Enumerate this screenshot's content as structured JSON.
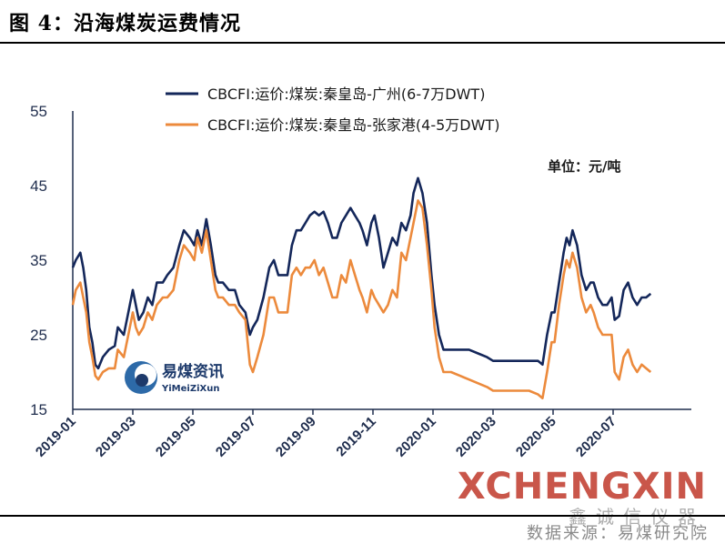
{
  "figure": {
    "title": "图 4：沿海煤炭运费情况",
    "source": "数据来源：易煤研究院",
    "unit": "单位：元/吨",
    "watermark": "XCHENGXIN",
    "watermark_cn": "鑫诚信仪器",
    "brand": "易煤资讯",
    "brand_sub": "YiMeiZiXun"
  },
  "colors": {
    "series1": "#14275a",
    "series2": "#ec8a3c",
    "axis": "#1f2d4d"
  },
  "chart_data": {
    "type": "line",
    "title": "",
    "xlabel": "",
    "ylabel": "",
    "ylim": [
      15,
      55
    ],
    "yticks": [
      "15",
      "25",
      "35",
      "45",
      "55"
    ],
    "x_range": [
      0,
      20
    ],
    "xticks": [
      {
        "x": 0,
        "label": "2019-01"
      },
      {
        "x": 2,
        "label": "2019-03"
      },
      {
        "x": 4,
        "label": "2019-05"
      },
      {
        "x": 6,
        "label": "2019-07"
      },
      {
        "x": 8,
        "label": "2019-09"
      },
      {
        "x": 10,
        "label": "2019-11"
      },
      {
        "x": 12,
        "label": "2020-01"
      },
      {
        "x": 14,
        "label": "2020-03"
      },
      {
        "x": 16,
        "label": "2020-05"
      },
      {
        "x": 18,
        "label": "2020-07"
      }
    ],
    "grid": false,
    "legend": "top",
    "series": [
      {
        "name": "CBCFI:运价:煤炭:秦皇岛-广州(6-7万DWT)",
        "points": [
          [
            0.0,
            34
          ],
          [
            0.1,
            35
          ],
          [
            0.25,
            36
          ],
          [
            0.35,
            34
          ],
          [
            0.45,
            31
          ],
          [
            0.55,
            26
          ],
          [
            0.65,
            24
          ],
          [
            0.75,
            21
          ],
          [
            0.85,
            20.5
          ],
          [
            1.0,
            22
          ],
          [
            1.2,
            23
          ],
          [
            1.4,
            23.5
          ],
          [
            1.5,
            26
          ],
          [
            1.7,
            25
          ],
          [
            1.85,
            28
          ],
          [
            2.0,
            31
          ],
          [
            2.1,
            29
          ],
          [
            2.2,
            27
          ],
          [
            2.35,
            28
          ],
          [
            2.5,
            30
          ],
          [
            2.65,
            29
          ],
          [
            2.8,
            32
          ],
          [
            3.0,
            32
          ],
          [
            3.15,
            33
          ],
          [
            3.35,
            34
          ],
          [
            3.55,
            37
          ],
          [
            3.7,
            39
          ],
          [
            3.9,
            38
          ],
          [
            4.05,
            37
          ],
          [
            4.15,
            39
          ],
          [
            4.3,
            37
          ],
          [
            4.45,
            40.5
          ],
          [
            4.6,
            37
          ],
          [
            4.75,
            33
          ],
          [
            4.85,
            32
          ],
          [
            5.0,
            32
          ],
          [
            5.2,
            31
          ],
          [
            5.4,
            31
          ],
          [
            5.55,
            29
          ],
          [
            5.75,
            28
          ],
          [
            5.9,
            25
          ],
          [
            6.0,
            26
          ],
          [
            6.15,
            27
          ],
          [
            6.35,
            30
          ],
          [
            6.55,
            34
          ],
          [
            6.7,
            35
          ],
          [
            6.85,
            33
          ],
          [
            7.0,
            33
          ],
          [
            7.15,
            33
          ],
          [
            7.3,
            37
          ],
          [
            7.45,
            39
          ],
          [
            7.6,
            39
          ],
          [
            7.75,
            40
          ],
          [
            7.9,
            41
          ],
          [
            8.05,
            41.5
          ],
          [
            8.2,
            41
          ],
          [
            8.35,
            41.5
          ],
          [
            8.5,
            40
          ],
          [
            8.65,
            38
          ],
          [
            8.8,
            38
          ],
          [
            8.95,
            40
          ],
          [
            9.1,
            41
          ],
          [
            9.25,
            42
          ],
          [
            9.4,
            41
          ],
          [
            9.55,
            40
          ],
          [
            9.65,
            39
          ],
          [
            9.8,
            37
          ],
          [
            9.95,
            40
          ],
          [
            10.05,
            41
          ],
          [
            10.2,
            38
          ],
          [
            10.35,
            34
          ],
          [
            10.5,
            36
          ],
          [
            10.65,
            38
          ],
          [
            10.8,
            37
          ],
          [
            10.95,
            40
          ],
          [
            11.1,
            39
          ],
          [
            11.25,
            41
          ],
          [
            11.35,
            44
          ],
          [
            11.5,
            46
          ],
          [
            11.65,
            44
          ],
          [
            11.8,
            40
          ],
          [
            11.95,
            33
          ],
          [
            12.05,
            29
          ],
          [
            12.2,
            25
          ],
          [
            12.35,
            23
          ],
          [
            12.6,
            23
          ],
          [
            12.9,
            23
          ],
          [
            13.2,
            23
          ],
          [
            13.5,
            22.5
          ],
          [
            13.8,
            22
          ],
          [
            14.0,
            21.5
          ],
          [
            14.3,
            21.5
          ],
          [
            14.6,
            21.5
          ],
          [
            14.9,
            21.5
          ],
          [
            15.2,
            21.5
          ],
          [
            15.5,
            21.5
          ],
          [
            15.65,
            21
          ],
          [
            15.8,
            25
          ],
          [
            15.95,
            28
          ],
          [
            16.05,
            28
          ],
          [
            16.2,
            32
          ],
          [
            16.35,
            36
          ],
          [
            16.45,
            38
          ],
          [
            16.55,
            37
          ],
          [
            16.65,
            39
          ],
          [
            16.8,
            37
          ],
          [
            16.95,
            33
          ],
          [
            17.1,
            31
          ],
          [
            17.25,
            32
          ],
          [
            17.35,
            32
          ],
          [
            17.5,
            30
          ],
          [
            17.65,
            29
          ],
          [
            17.8,
            29
          ],
          [
            17.95,
            30
          ],
          [
            18.05,
            27
          ],
          [
            18.2,
            27.5
          ],
          [
            18.35,
            31
          ],
          [
            18.5,
            32
          ],
          [
            18.65,
            30
          ],
          [
            18.8,
            29
          ],
          [
            18.95,
            30
          ],
          [
            19.1,
            30
          ],
          [
            19.25,
            30.5
          ]
        ]
      },
      {
        "name": "CBCFI:运价:煤炭:秦皇岛-张家港(4-5万DWT)",
        "points": [
          [
            0.0,
            29
          ],
          [
            0.1,
            31
          ],
          [
            0.25,
            32
          ],
          [
            0.35,
            30
          ],
          [
            0.45,
            28
          ],
          [
            0.55,
            24
          ],
          [
            0.65,
            22
          ],
          [
            0.75,
            19.5
          ],
          [
            0.85,
            19
          ],
          [
            1.0,
            20
          ],
          [
            1.2,
            20.5
          ],
          [
            1.4,
            20.5
          ],
          [
            1.5,
            23
          ],
          [
            1.7,
            22
          ],
          [
            1.85,
            25
          ],
          [
            2.0,
            28
          ],
          [
            2.1,
            26
          ],
          [
            2.2,
            25
          ],
          [
            2.35,
            26
          ],
          [
            2.5,
            28
          ],
          [
            2.65,
            27
          ],
          [
            2.8,
            29
          ],
          [
            3.0,
            30
          ],
          [
            3.15,
            30
          ],
          [
            3.35,
            31
          ],
          [
            3.55,
            35
          ],
          [
            3.7,
            37
          ],
          [
            3.9,
            36
          ],
          [
            4.05,
            35
          ],
          [
            4.15,
            38
          ],
          [
            4.3,
            36
          ],
          [
            4.45,
            39
          ],
          [
            4.6,
            35
          ],
          [
            4.75,
            31
          ],
          [
            4.85,
            30
          ],
          [
            5.0,
            30
          ],
          [
            5.2,
            29
          ],
          [
            5.4,
            29
          ],
          [
            5.55,
            28
          ],
          [
            5.75,
            27
          ],
          [
            5.9,
            21
          ],
          [
            6.0,
            20
          ],
          [
            6.15,
            22
          ],
          [
            6.35,
            25
          ],
          [
            6.55,
            30
          ],
          [
            6.7,
            30
          ],
          [
            6.85,
            28
          ],
          [
            7.0,
            28
          ],
          [
            7.15,
            28
          ],
          [
            7.3,
            33
          ],
          [
            7.45,
            34
          ],
          [
            7.6,
            33
          ],
          [
            7.75,
            34
          ],
          [
            7.9,
            34
          ],
          [
            8.05,
            35
          ],
          [
            8.2,
            33
          ],
          [
            8.35,
            34
          ],
          [
            8.5,
            32
          ],
          [
            8.65,
            30
          ],
          [
            8.8,
            30
          ],
          [
            8.95,
            33
          ],
          [
            9.1,
            32
          ],
          [
            9.25,
            35
          ],
          [
            9.4,
            33
          ],
          [
            9.55,
            31
          ],
          [
            9.65,
            30
          ],
          [
            9.8,
            28
          ],
          [
            9.95,
            31
          ],
          [
            10.05,
            30
          ],
          [
            10.2,
            29
          ],
          [
            10.35,
            28
          ],
          [
            10.5,
            29
          ],
          [
            10.65,
            31
          ],
          [
            10.8,
            30
          ],
          [
            10.95,
            36
          ],
          [
            11.1,
            35
          ],
          [
            11.25,
            38
          ],
          [
            11.35,
            40
          ],
          [
            11.5,
            43
          ],
          [
            11.65,
            42
          ],
          [
            11.8,
            37
          ],
          [
            11.95,
            31
          ],
          [
            12.05,
            26
          ],
          [
            12.2,
            22
          ],
          [
            12.35,
            20
          ],
          [
            12.6,
            20
          ],
          [
            12.9,
            19.5
          ],
          [
            13.2,
            19
          ],
          [
            13.5,
            18.5
          ],
          [
            13.8,
            18
          ],
          [
            14.0,
            17.5
          ],
          [
            14.3,
            17.5
          ],
          [
            14.6,
            17.5
          ],
          [
            14.9,
            17.5
          ],
          [
            15.2,
            17.5
          ],
          [
            15.5,
            17
          ],
          [
            15.65,
            16.5
          ],
          [
            15.8,
            20
          ],
          [
            15.95,
            24
          ],
          [
            16.05,
            24
          ],
          [
            16.2,
            29
          ],
          [
            16.35,
            33
          ],
          [
            16.45,
            35
          ],
          [
            16.55,
            34
          ],
          [
            16.65,
            36
          ],
          [
            16.8,
            34
          ],
          [
            16.95,
            30
          ],
          [
            17.1,
            28
          ],
          [
            17.25,
            29
          ],
          [
            17.35,
            28
          ],
          [
            17.5,
            26
          ],
          [
            17.65,
            25
          ],
          [
            17.8,
            25
          ],
          [
            17.95,
            25
          ],
          [
            18.05,
            20
          ],
          [
            18.2,
            19
          ],
          [
            18.35,
            22
          ],
          [
            18.5,
            23
          ],
          [
            18.65,
            21
          ],
          [
            18.8,
            20
          ],
          [
            18.95,
            21
          ],
          [
            19.1,
            20.5
          ],
          [
            19.25,
            20
          ]
        ]
      }
    ]
  }
}
